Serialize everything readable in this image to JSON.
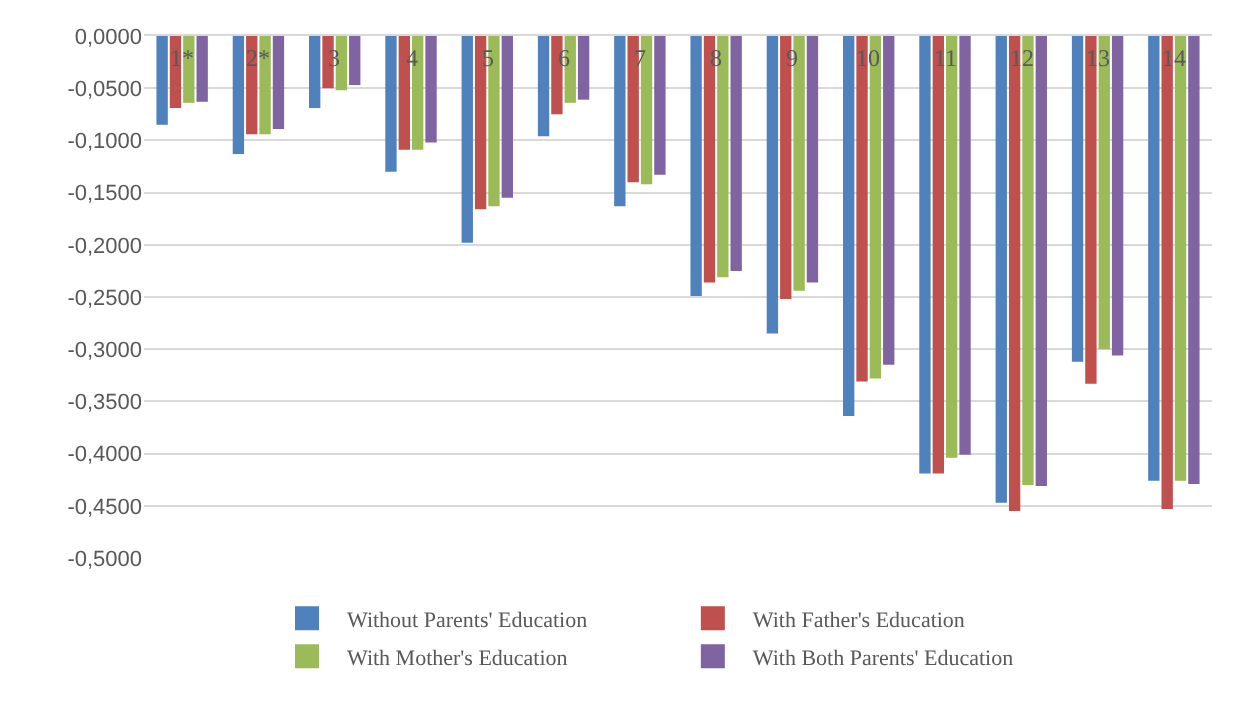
{
  "chart_data": {
    "type": "bar",
    "categories": [
      "1*",
      "2*",
      "3",
      "4",
      "5",
      "6",
      "7",
      "8",
      "9",
      "10",
      "11",
      "12",
      "13",
      "14"
    ],
    "series": [
      {
        "name": "Without Parents' Education",
        "color": "#4f81bd",
        "values": [
          -0.085,
          -0.113,
          -0.069,
          -0.13,
          -0.198,
          -0.096,
          -0.163,
          -0.249,
          -0.285,
          -0.364,
          -0.419,
          -0.447,
          -0.312,
          -0.426
        ]
      },
      {
        "name": "With Father's Education",
        "color": "#c0504d",
        "values": [
          -0.069,
          -0.094,
          -0.05,
          -0.109,
          -0.166,
          -0.075,
          -0.14,
          -0.236,
          -0.252,
          -0.331,
          -0.419,
          -0.455,
          -0.333,
          -0.453
        ]
      },
      {
        "name": "With Mother's Education",
        "color": "#9bbb59",
        "values": [
          -0.064,
          -0.094,
          -0.052,
          -0.109,
          -0.163,
          -0.064,
          -0.142,
          -0.231,
          -0.244,
          -0.328,
          -0.404,
          -0.43,
          -0.3,
          -0.426
        ]
      },
      {
        "name": "With Both Parents' Education",
        "color": "#8064a2",
        "values": [
          -0.063,
          -0.089,
          -0.047,
          -0.102,
          -0.155,
          -0.061,
          -0.133,
          -0.225,
          -0.236,
          -0.315,
          -0.401,
          -0.431,
          -0.306,
          -0.429
        ]
      }
    ],
    "ylim": [
      -0.5,
      0
    ],
    "yticks": [
      {
        "value": 0,
        "label": "0,0000"
      },
      {
        "value": -0.05,
        "label": "-0,0500"
      },
      {
        "value": -0.1,
        "label": "-0,1000"
      },
      {
        "value": -0.15,
        "label": "-0,1500"
      },
      {
        "value": -0.2,
        "label": "-0,2000"
      },
      {
        "value": -0.25,
        "label": "-0,2500"
      },
      {
        "value": -0.3,
        "label": "-0,3000"
      },
      {
        "value": -0.35,
        "label": "-0,3500"
      },
      {
        "value": -0.4,
        "label": "-0,4000"
      },
      {
        "value": -0.45,
        "label": "-0,4500"
      },
      {
        "value": -0.5,
        "label": "-0,5000"
      }
    ],
    "grid": "y",
    "legend": "bottom"
  }
}
